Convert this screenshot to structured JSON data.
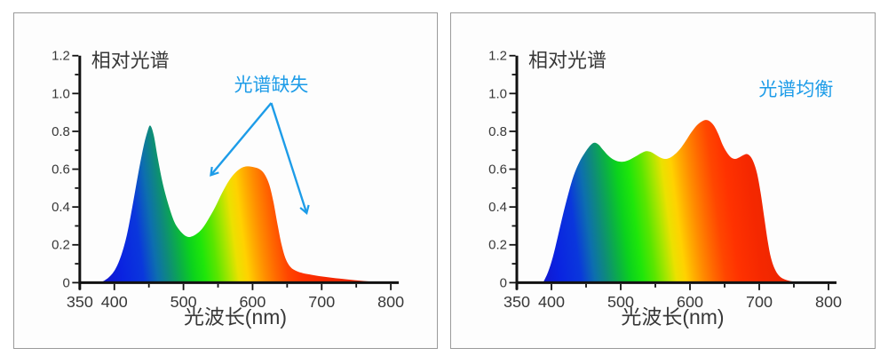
{
  "shared": {
    "text_color": "#383838",
    "axis_color": "#111111",
    "accent_blue": "#1D9CE8",
    "panel_border": "#9A9A9A",
    "panel_background": "#FDFDFD",
    "spectrum_gradient_stops": [
      {
        "wl": 380,
        "color": "#1414C8"
      },
      {
        "wl": 412,
        "color": "#0A23E1"
      },
      {
        "wl": 442,
        "color": "#0A37DC"
      },
      {
        "wl": 462,
        "color": "#0D6EAF"
      },
      {
        "wl": 480,
        "color": "#0E8C78"
      },
      {
        "wl": 497,
        "color": "#0BAF46"
      },
      {
        "wl": 513,
        "color": "#0BD21D"
      },
      {
        "wl": 530,
        "color": "#1EE60A"
      },
      {
        "wl": 548,
        "color": "#5AE600"
      },
      {
        "wl": 565,
        "color": "#AAE600"
      },
      {
        "wl": 578,
        "color": "#EBE100"
      },
      {
        "wl": 591,
        "color": "#FFD200"
      },
      {
        "wl": 603,
        "color": "#FFAF00"
      },
      {
        "wl": 616,
        "color": "#FF8C00"
      },
      {
        "wl": 631,
        "color": "#FF6900"
      },
      {
        "wl": 648,
        "color": "#FF4600"
      },
      {
        "wl": 668,
        "color": "#FF3200"
      },
      {
        "wl": 700,
        "color": "#F52800"
      },
      {
        "wl": 780,
        "color": "#E12300"
      }
    ]
  },
  "chart_data": [
    {
      "type": "area",
      "title": "相对光谱",
      "xlabel": "光波长(nm)",
      "ylabel": "",
      "xlim": [
        350,
        800
      ],
      "ylim": [
        0,
        1.2
      ],
      "grid": false,
      "x_axis": {
        "major": [
          {
            "v": 350,
            "label": "350"
          },
          {
            "v": 400,
            "label": "400"
          },
          {
            "v": 500,
            "label": "500"
          },
          {
            "v": 600,
            "label": "600"
          },
          {
            "v": 700,
            "label": "700"
          },
          {
            "v": 800,
            "label": "800"
          }
        ],
        "minor": [
          450,
          550,
          650,
          750
        ]
      },
      "y_axis": {
        "major": [
          {
            "v": 0,
            "label": "0"
          },
          {
            "v": 0.2,
            "label": "0.2"
          },
          {
            "v": 0.4,
            "label": "0.4"
          },
          {
            "v": 0.6,
            "label": "0.6"
          },
          {
            "v": 0.8,
            "label": "0.8"
          },
          {
            "v": 1.0,
            "label": "1.0"
          },
          {
            "v": 1.2,
            "label": "1.2"
          }
        ],
        "minor": [
          0.1,
          0.3,
          0.5,
          0.7,
          0.9,
          1.1
        ]
      },
      "annotation": {
        "text": "光谱缺失",
        "x": 627,
        "y": 1.047,
        "arrows": [
          {
            "x1": 627,
            "y1": 0.95,
            "x2": 540,
            "y2": 0.57
          },
          {
            "x1": 627,
            "y1": 0.95,
            "x2": 678,
            "y2": 0.37
          }
        ]
      },
      "points": [
        [
          378,
          0
        ],
        [
          386,
          0.012
        ],
        [
          394,
          0.035
        ],
        [
          402,
          0.075
        ],
        [
          410,
          0.145
        ],
        [
          418,
          0.25
        ],
        [
          426,
          0.4
        ],
        [
          434,
          0.565
        ],
        [
          442,
          0.715
        ],
        [
          448,
          0.8
        ],
        [
          452,
          0.83
        ],
        [
          457,
          0.78
        ],
        [
          463,
          0.655
        ],
        [
          470,
          0.525
        ],
        [
          478,
          0.415
        ],
        [
          487,
          0.32
        ],
        [
          496,
          0.27
        ],
        [
          504,
          0.245
        ],
        [
          510,
          0.242
        ],
        [
          518,
          0.255
        ],
        [
          527,
          0.285
        ],
        [
          536,
          0.335
        ],
        [
          546,
          0.4
        ],
        [
          556,
          0.475
        ],
        [
          566,
          0.54
        ],
        [
          576,
          0.585
        ],
        [
          586,
          0.61
        ],
        [
          594,
          0.615
        ],
        [
          602,
          0.61
        ],
        [
          610,
          0.6
        ],
        [
          617,
          0.575
        ],
        [
          624,
          0.52
        ],
        [
          630,
          0.43
        ],
        [
          636,
          0.31
        ],
        [
          642,
          0.2
        ],
        [
          648,
          0.125
        ],
        [
          655,
          0.082
        ],
        [
          663,
          0.062
        ],
        [
          673,
          0.05
        ],
        [
          685,
          0.042
        ],
        [
          700,
          0.033
        ],
        [
          715,
          0.026
        ],
        [
          730,
          0.02
        ],
        [
          748,
          0.013
        ],
        [
          766,
          0.007
        ],
        [
          784,
          0.003
        ],
        [
          800,
          0
        ]
      ]
    },
    {
      "type": "area",
      "title": "相对光谱",
      "xlabel": "光波长(nm)",
      "ylabel": "",
      "xlim": [
        350,
        800
      ],
      "ylim": [
        0,
        1.2
      ],
      "grid": false,
      "x_axis": {
        "major": [
          {
            "v": 350,
            "label": "350"
          },
          {
            "v": 400,
            "label": "400"
          },
          {
            "v": 500,
            "label": "500"
          },
          {
            "v": 600,
            "label": "600"
          },
          {
            "v": 700,
            "label": "700"
          },
          {
            "v": 800,
            "label": "800"
          }
        ],
        "minor": [
          450,
          550,
          650,
          750
        ]
      },
      "y_axis": {
        "major": [
          {
            "v": 0,
            "label": "0"
          },
          {
            "v": 0.2,
            "label": "0.2"
          },
          {
            "v": 0.4,
            "label": "0.4"
          },
          {
            "v": 0.6,
            "label": "0.6"
          },
          {
            "v": 0.8,
            "label": "0.8"
          },
          {
            "v": 1.0,
            "label": "1.0"
          },
          {
            "v": 1.2,
            "label": "1.2"
          }
        ],
        "minor": [
          0.1,
          0.3,
          0.5,
          0.7,
          0.9,
          1.1
        ]
      },
      "annotation": {
        "text": "光谱均衡",
        "x": 753,
        "y": 1.022,
        "arrows": []
      },
      "points": [
        [
          388,
          0
        ],
        [
          395,
          0.055
        ],
        [
          402,
          0.135
        ],
        [
          409,
          0.24
        ],
        [
          416,
          0.35
        ],
        [
          424,
          0.465
        ],
        [
          432,
          0.565
        ],
        [
          440,
          0.635
        ],
        [
          448,
          0.685
        ],
        [
          456,
          0.725
        ],
        [
          462,
          0.74
        ],
        [
          468,
          0.73
        ],
        [
          475,
          0.7
        ],
        [
          482,
          0.672
        ],
        [
          490,
          0.65
        ],
        [
          498,
          0.64
        ],
        [
          506,
          0.641
        ],
        [
          514,
          0.652
        ],
        [
          522,
          0.668
        ],
        [
          530,
          0.685
        ],
        [
          537,
          0.695
        ],
        [
          544,
          0.69
        ],
        [
          551,
          0.675
        ],
        [
          558,
          0.66
        ],
        [
          564,
          0.654
        ],
        [
          571,
          0.66
        ],
        [
          578,
          0.678
        ],
        [
          586,
          0.708
        ],
        [
          594,
          0.75
        ],
        [
          602,
          0.795
        ],
        [
          610,
          0.832
        ],
        [
          617,
          0.852
        ],
        [
          623,
          0.86
        ],
        [
          629,
          0.852
        ],
        [
          635,
          0.828
        ],
        [
          641,
          0.785
        ],
        [
          647,
          0.73
        ],
        [
          653,
          0.69
        ],
        [
          659,
          0.663
        ],
        [
          665,
          0.654
        ],
        [
          671,
          0.662
        ],
        [
          677,
          0.674
        ],
        [
          682,
          0.68
        ],
        [
          687,
          0.668
        ],
        [
          692,
          0.635
        ],
        [
          697,
          0.575
        ],
        [
          702,
          0.475
        ],
        [
          707,
          0.35
        ],
        [
          712,
          0.225
        ],
        [
          717,
          0.13
        ],
        [
          723,
          0.068
        ],
        [
          730,
          0.032
        ],
        [
          740,
          0.013
        ],
        [
          752,
          0.004
        ],
        [
          762,
          0
        ]
      ]
    }
  ]
}
